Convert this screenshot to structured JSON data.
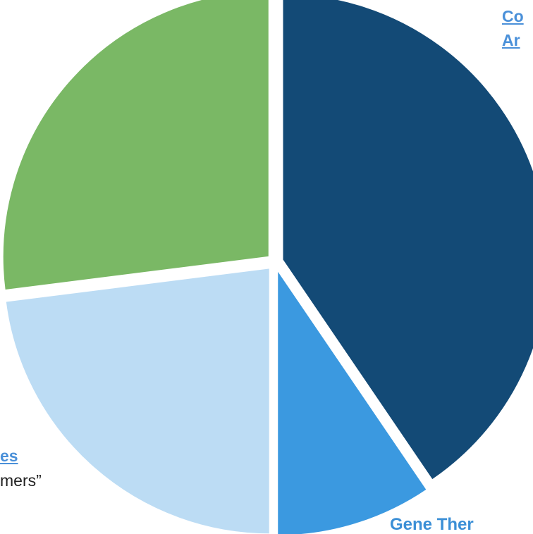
{
  "chart_data": {
    "type": "pie",
    "title": "",
    "slices": [
      {
        "value": 40.5,
        "color": "#134a76"
      },
      {
        "value": 9.5,
        "color": "#3b99e0"
      },
      {
        "value": 23.0,
        "color": "#bcdcf4"
      },
      {
        "value": 27.0,
        "color": "#7ab865"
      }
    ],
    "labels": {
      "top_right_line1": "Co",
      "top_right_line2": "Ar",
      "left_heading": "es",
      "left_sub": "mers”",
      "bottom": "Gene Ther"
    }
  }
}
